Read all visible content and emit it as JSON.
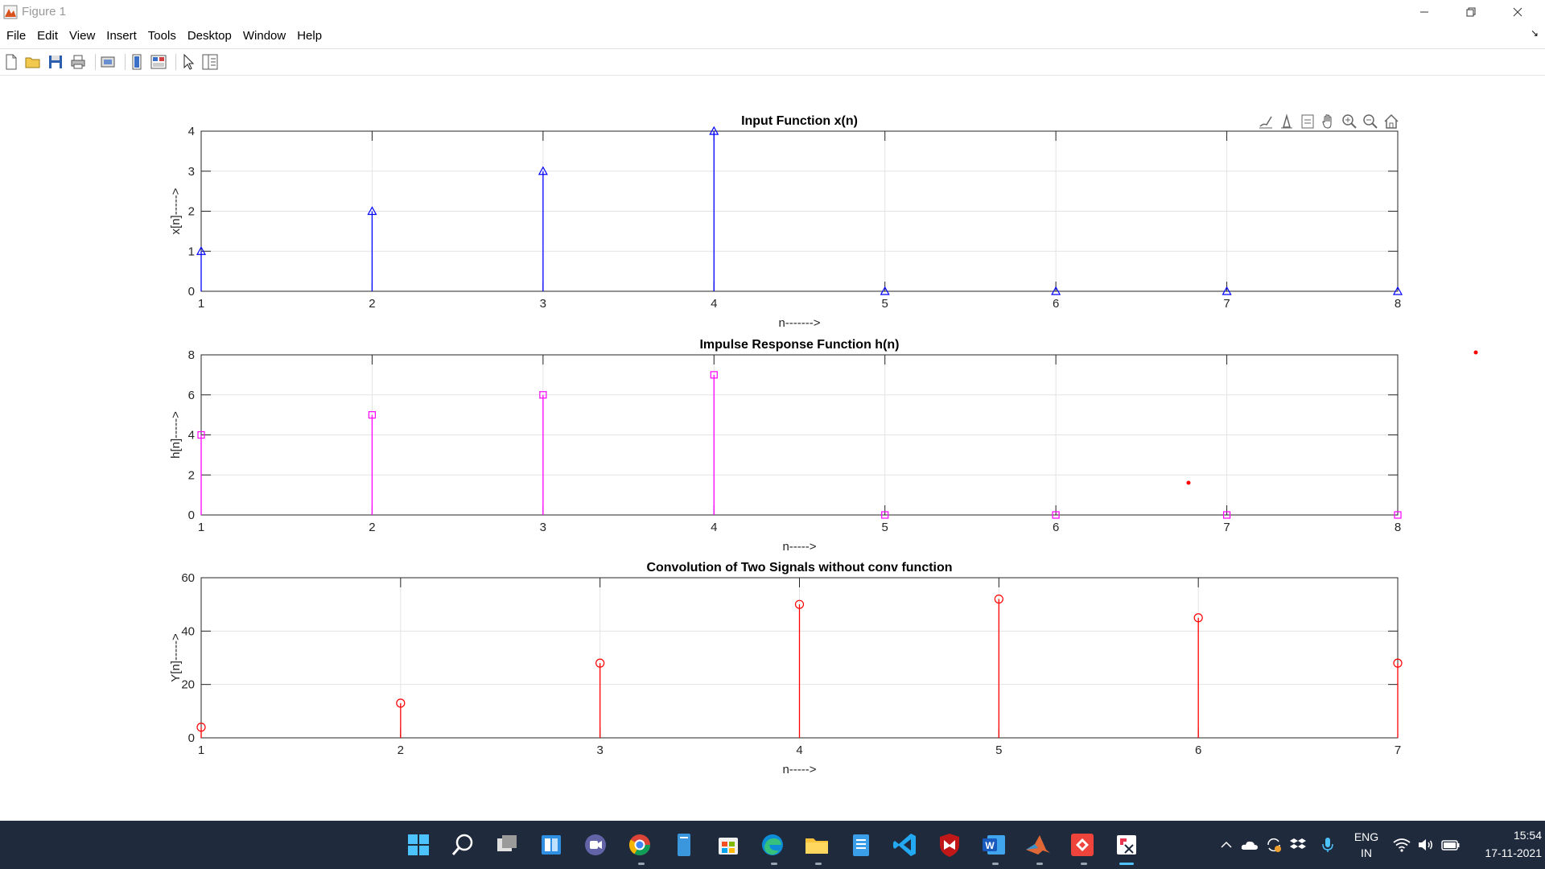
{
  "window": {
    "title": "Figure 1",
    "controls": [
      "minimize-icon",
      "restore-icon",
      "close-icon"
    ]
  },
  "menu": {
    "items": [
      "File",
      "Edit",
      "View",
      "Insert",
      "Tools",
      "Desktop",
      "Window",
      "Help"
    ]
  },
  "toolbar": {
    "buttons": [
      "new-figure-icon",
      "open-file-icon",
      "save-icon",
      "print-icon",
      "print-preview-icon",
      "hide-plot-tools-icon",
      "show-plot-tools-icon",
      "edit-plot-icon",
      "property-inspector-icon"
    ]
  },
  "axes_toolbar": {
    "buttons": [
      "brush-icon",
      "data-tips-icon",
      "export-icon",
      "pan-icon",
      "zoom-in-icon",
      "zoom-out-icon",
      "restore-view-icon"
    ]
  },
  "chart_data": [
    {
      "type": "stem",
      "title": "Input Function x(n)",
      "xlabel": "n------->",
      "ylabel": "x[n]----->",
      "x": [
        1,
        2,
        3,
        4,
        5,
        6,
        7,
        8
      ],
      "y": [
        1,
        2,
        3,
        4,
        0,
        0,
        0,
        0
      ],
      "xlim": [
        1,
        8
      ],
      "ylim": [
        0,
        4
      ],
      "xticks": [
        1,
        2,
        3,
        4,
        5,
        6,
        7,
        8
      ],
      "yticks": [
        0,
        1,
        2,
        3,
        4
      ],
      "marker": "triangle",
      "color": "#0000ff",
      "grid": true
    },
    {
      "type": "stem",
      "title": "Impulse Response Function h(n)",
      "xlabel": "n----->",
      "ylabel": "h[n]----->",
      "x": [
        1,
        2,
        3,
        4,
        5,
        6,
        7,
        8
      ],
      "y": [
        4,
        5,
        6,
        7,
        0,
        0,
        0,
        0
      ],
      "xlim": [
        1,
        8
      ],
      "ylim": [
        0,
        8
      ],
      "xticks": [
        1,
        2,
        3,
        4,
        5,
        6,
        7,
        8
      ],
      "yticks": [
        0,
        2,
        4,
        6,
        8
      ],
      "marker": "square",
      "color": "#ff00ff",
      "grid": true
    },
    {
      "type": "stem",
      "title": "Convolution of Two Signals without conv function",
      "xlabel": "n----->",
      "ylabel": "Y[n]----->",
      "x": [
        1,
        2,
        3,
        4,
        5,
        6,
        7
      ],
      "y": [
        4,
        13,
        28,
        50,
        52,
        45,
        28
      ],
      "xlim": [
        1,
        7
      ],
      "ylim": [
        0,
        60
      ],
      "xticks": [
        1,
        2,
        3,
        4,
        5,
        6,
        7
      ],
      "yticks": [
        0,
        20,
        40,
        60
      ],
      "marker": "circle",
      "color": "#ff0000",
      "grid": true
    }
  ],
  "taskbar": {
    "apps": [
      "windows-start-icon",
      "search-icon",
      "task-view-icon",
      "widgets-icon",
      "teams-chat-icon",
      "chrome-icon",
      "notepad-doc-icon",
      "store-icon",
      "edge-icon",
      "file-explorer-icon",
      "notes-icon",
      "vscode-icon",
      "mcafee-icon",
      "word-icon",
      "matlab-icon",
      "anydesk-icon",
      "snipping-tool-icon"
    ],
    "tray": {
      "language_top": "ENG",
      "language_bottom": "IN",
      "time": "15:54",
      "date": "17-11-2021"
    }
  }
}
